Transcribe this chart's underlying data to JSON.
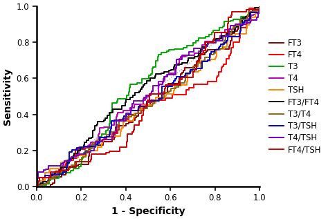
{
  "title": "",
  "xlabel": "1 - Specificity",
  "ylabel": "Sensitivity",
  "xlim": [
    0.0,
    1.0
  ],
  "ylim": [
    0.0,
    1.0
  ],
  "xticks": [
    0.0,
    0.2,
    0.4,
    0.6,
    0.8,
    1.0
  ],
  "yticks": [
    0.0,
    0.2,
    0.4,
    0.6,
    0.8,
    1.0
  ],
  "background_color": "#ffffff",
  "curves": [
    {
      "label": "FT3",
      "color": "#8B0000",
      "beta": 0.22,
      "seed": 10
    },
    {
      "label": "FT4",
      "color": "#FF0000",
      "beta": 0.2,
      "seed": 20
    },
    {
      "label": "T3",
      "color": "#00AA00",
      "beta": 0.32,
      "seed": 30
    },
    {
      "label": "T4",
      "color": "#BB00BB",
      "beta": 0.28,
      "seed": 40
    },
    {
      "label": "TSH",
      "color": "#FF8800",
      "beta": 0.21,
      "seed": 50
    },
    {
      "label": "FT3/FT4",
      "color": "#000000",
      "beta": 0.55,
      "seed": 60
    },
    {
      "label": "T3/T4",
      "color": "#8B6914",
      "beta": 0.7,
      "seed": 70
    },
    {
      "label": "T3/TSH",
      "color": "#0000CC",
      "beta": 0.18,
      "seed": 80
    },
    {
      "label": "T4/TSH",
      "color": "#7700BB",
      "beta": 0.19,
      "seed": 90
    },
    {
      "label": "FT4/TSH",
      "color": "#CC0000",
      "beta": 0.17,
      "seed": 100
    }
  ],
  "diagonal_color": "#FF8888",
  "linewidth": 1.4,
  "fontsize_axis_label": 10,
  "fontsize_tick": 8.5,
  "fontsize_legend": 8.5
}
